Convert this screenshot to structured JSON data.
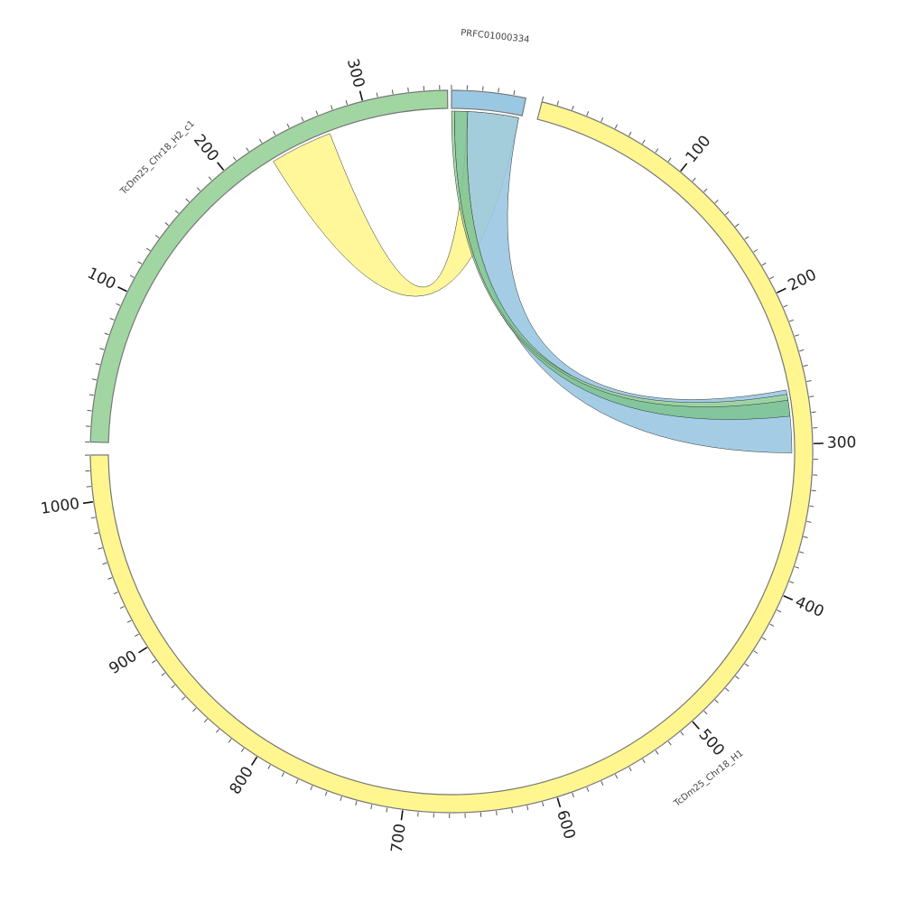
{
  "chart_data": {
    "type": "chord",
    "title": "",
    "unit_per_tick": 10,
    "label_every": 100,
    "segments": [
      {
        "name": "PRFC01000334",
        "length": 48,
        "color": "#9ac8e2"
      },
      {
        "name": "TcDm25_Chr18_H1",
        "length": 1030,
        "color": "#fff68f"
      },
      {
        "name": "TcDm25_Chr18_H2_c1",
        "length": 355,
        "color": "#a1d6a2"
      }
    ],
    "links": [
      {
        "from": {
          "segment": 2,
          "start": 230,
          "end": 273
        },
        "to": {
          "segment": 0,
          "start": 11,
          "end": 46
        },
        "color": "#fff68f"
      },
      {
        "from": {
          "segment": 0,
          "start": 11,
          "end": 46
        },
        "to": {
          "segment": 1,
          "start": 263,
          "end": 306
        },
        "color": "#9ac8e2"
      },
      {
        "from": {
          "segment": 0,
          "start": 2,
          "end": 11
        },
        "to": {
          "segment": 1,
          "start": 268,
          "end": 281
        },
        "color": "#7fc495"
      },
      {
        "from": {
          "segment": 0,
          "start": 0,
          "end": 2
        },
        "to": {
          "segment": 1,
          "start": 266,
          "end": 270
        },
        "color": "#a1d6a2"
      }
    ]
  }
}
